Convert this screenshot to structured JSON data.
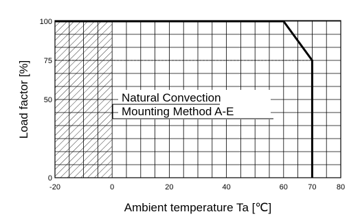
{
  "chart_data": {
    "type": "line",
    "title": "",
    "xlabel": "Ambient temperature Ta [℃]",
    "ylabel": "Load factor [%]",
    "xlim": [
      -20,
      80
    ],
    "ylim": [
      0,
      105
    ],
    "x_ticks": [
      -20,
      0,
      20,
      40,
      60,
      70,
      80
    ],
    "x_tick_labels": [
      "-20",
      "0",
      "20",
      "40",
      "60",
      "70",
      "80"
    ],
    "y_ticks": [
      0,
      50,
      75,
      100
    ],
    "y_tick_labels": [
      "0",
      "50",
      "75",
      "100"
    ],
    "grid": true,
    "x_grid_step": 5,
    "y_grid_values": [
      0,
      8.333,
      16.667,
      25,
      33.333,
      41.667,
      50,
      58.333,
      66.667,
      75,
      83.333,
      91.667,
      100
    ],
    "series": [
      {
        "name": "",
        "x": [
          -20,
          60,
          70,
          70
        ],
        "y": [
          100,
          100,
          75,
          0
        ]
      }
    ],
    "reference_line": {
      "y": 75,
      "x_range": [
        -20,
        70
      ],
      "style": "dashed"
    },
    "hatched_region": {
      "x_range": [
        -20,
        0
      ],
      "y_range": [
        0,
        100
      ]
    },
    "annotations": [
      "Natural Convection",
      "Mounting Method A-E"
    ],
    "colors": {
      "line": "#000000",
      "grid": "#000000",
      "background": "#ffffff"
    }
  }
}
